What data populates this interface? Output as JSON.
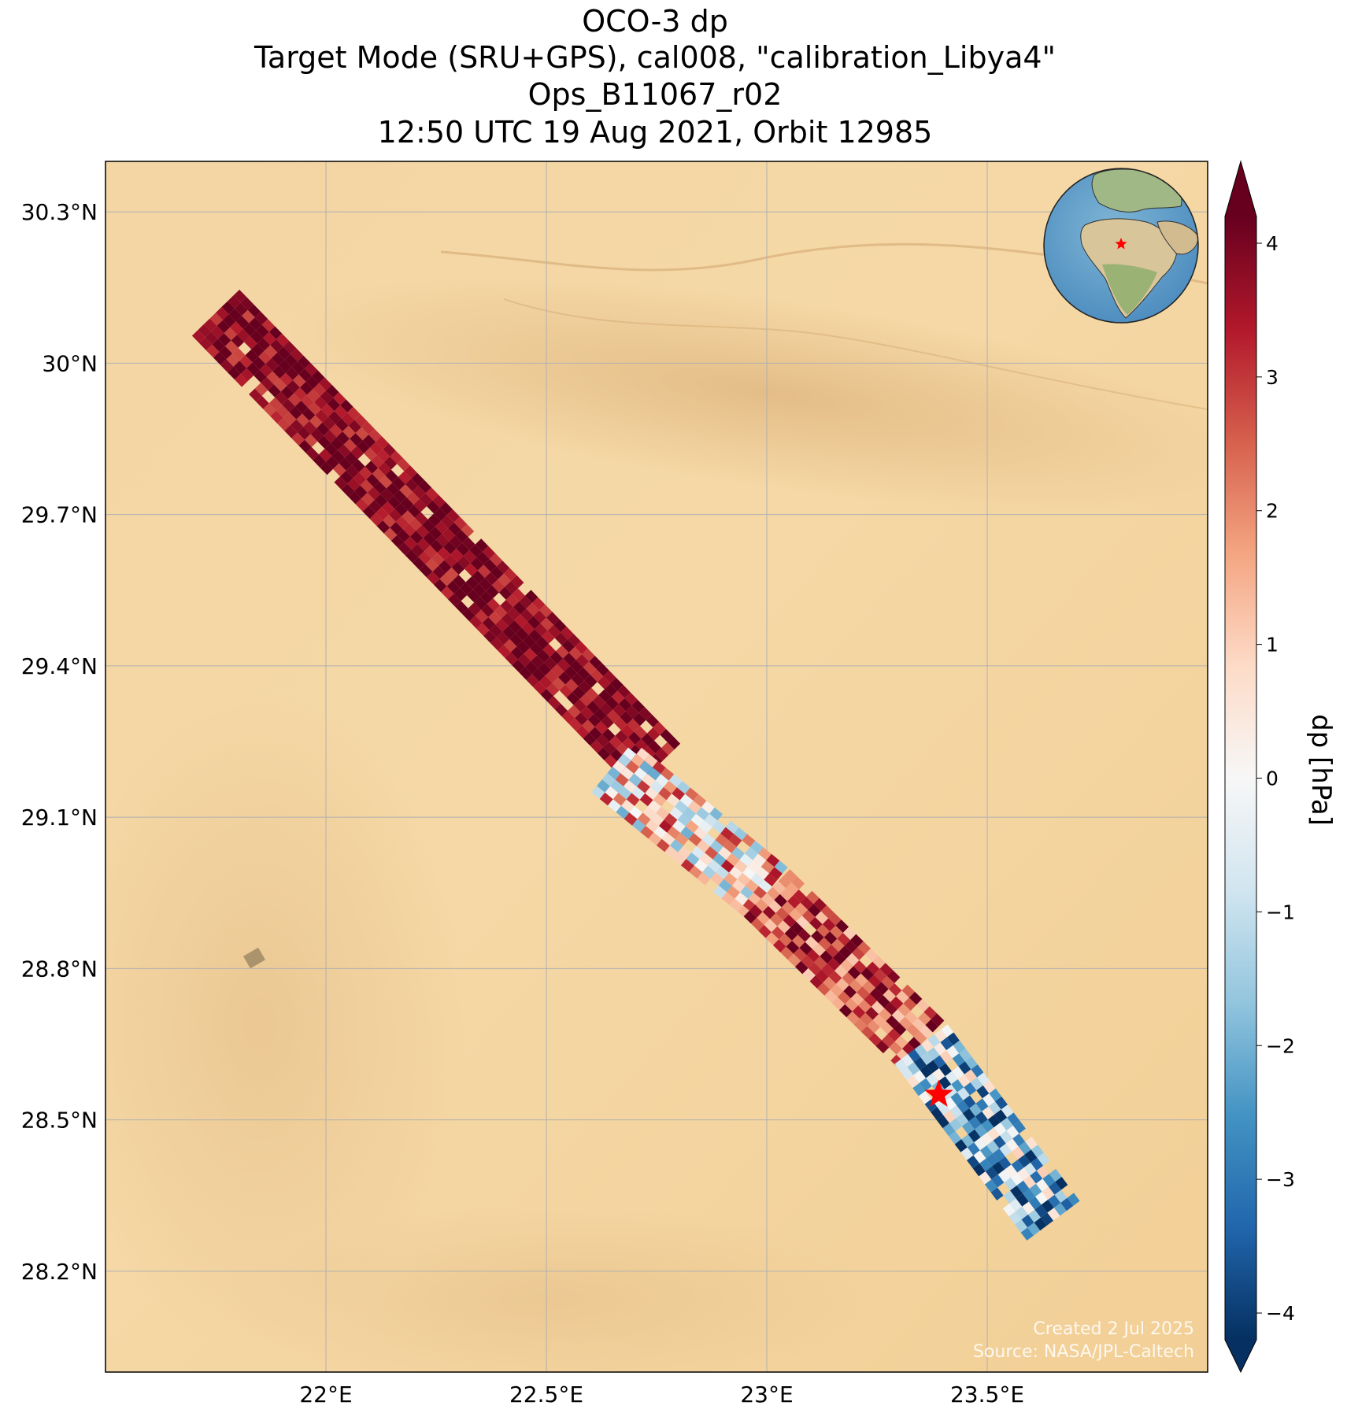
{
  "figure": {
    "title_lines": [
      "OCO-3 dp",
      "Target Mode (SRU+GPS), cal008, \"calibration_Libya4\"",
      "Ops_B11067_r02",
      "12:50 UTC 19 Aug 2021, Orbit 12985"
    ],
    "credit_lines": [
      "Created 2 Jul 2025",
      "Source: NASA/JPL-Caltech"
    ]
  },
  "map": {
    "lon_range": [
      21.5,
      24.0
    ],
    "lat_range": [
      28.0,
      30.4
    ],
    "lon_ticks": [
      22.0,
      22.5,
      23.0,
      23.5
    ],
    "lon_tick_labels": [
      "22°E",
      "22.5°E",
      "23°E",
      "23.5°E"
    ],
    "lat_ticks": [
      28.2,
      28.5,
      28.8,
      29.1,
      29.4,
      29.7,
      30.0,
      30.3
    ],
    "lat_tick_labels": [
      "28.2°N",
      "28.5°N",
      "28.8°N",
      "29.1°N",
      "29.4°N",
      "29.7°N",
      "30°N",
      "30.3°N"
    ],
    "gridlines": true,
    "background": "satellite imagery, Sahara desert",
    "target_marker": {
      "lon": 23.39,
      "lat": 28.55,
      "symbol": "star",
      "color": "#ff0000"
    },
    "inset_globe": {
      "placement": "top-right",
      "marker": "star",
      "marker_color": "#ff0000"
    }
  },
  "colorbar": {
    "label": "dp [hPa]",
    "range": [
      -4.2,
      4.2
    ],
    "ticks": [
      -4,
      -3,
      -2,
      -1,
      0,
      1,
      2,
      3,
      4
    ],
    "tick_labels": [
      "−4",
      "−3",
      "−2",
      "−1",
      "0",
      "1",
      "2",
      "3",
      "4"
    ],
    "extend": "both",
    "colormap": "RdBu_r",
    "colors": [
      "#053061",
      "#2166ac",
      "#4393c3",
      "#92c5de",
      "#d1e5f0",
      "#f7f7f7",
      "#fddbc7",
      "#f4a582",
      "#d6604d",
      "#b2182b",
      "#67001f"
    ]
  },
  "chart_data": {
    "type": "heatmap",
    "variable": "dp",
    "units": "hPa",
    "swath_segments": [
      {
        "lon_start": 21.75,
        "lat_start": 30.1,
        "lon_end": 22.75,
        "lat_end": 29.2,
        "dp_mean": 3.9,
        "dp_spread": 0.7
      },
      {
        "lon_start": 22.65,
        "lat_start": 29.2,
        "lon_end": 23.0,
        "lat_end": 28.95,
        "dp_mean": 0.6,
        "dp_spread": 1.8
      },
      {
        "lon_start": 23.0,
        "lat_start": 28.95,
        "lon_end": 23.35,
        "lat_end": 28.65,
        "dp_mean": 2.9,
        "dp_spread": 1.2
      },
      {
        "lon_start": 23.35,
        "lat_start": 28.65,
        "lon_end": 23.65,
        "lat_end": 28.3,
        "dp_mean": -1.8,
        "dp_spread": 1.8
      }
    ],
    "target": {
      "lon": 23.39,
      "lat": 28.55
    }
  }
}
